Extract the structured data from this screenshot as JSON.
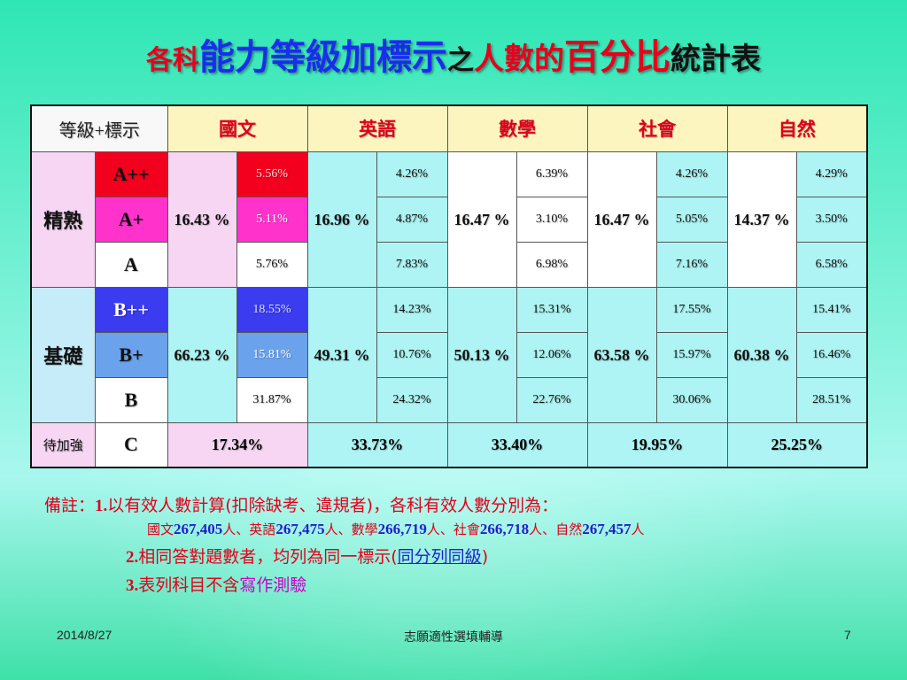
{
  "title": {
    "p1": "各科",
    "p2": "能力等級加標示",
    "p3": "之",
    "p4": "人數的",
    "p5": "百分比",
    "p6": "統計表"
  },
  "table": {
    "corner_label": "等級+標示",
    "subjects": [
      "國文",
      "英語",
      "數學",
      "社會",
      "自然"
    ],
    "groups": {
      "proficient": "精熟",
      "basic": "基礎",
      "needs_work": "待加強"
    },
    "levels": [
      "A++",
      "A+",
      "A",
      "B++",
      "B+",
      "B",
      "C"
    ],
    "subtotals": {
      "proficient": [
        "16.43 %",
        "16.96 %",
        "16.47 %",
        "16.47 %",
        "14.37 %"
      ],
      "basic": [
        "66.23 %",
        "49.31 %",
        "50.13 %",
        "63.58 %",
        "60.38 %"
      ]
    },
    "rows": [
      [
        "5.56%",
        "4.26%",
        "6.39%",
        "4.26%",
        "4.29%"
      ],
      [
        "5.11%",
        "4.87%",
        "3.10%",
        "5.05%",
        "3.50%"
      ],
      [
        "5.76%",
        "7.83%",
        "6.98%",
        "7.16%",
        "6.58%"
      ],
      [
        "18.55%",
        "14.23%",
        "15.31%",
        "17.55%",
        "15.41%"
      ],
      [
        "15.81%",
        "10.76%",
        "12.06%",
        "15.97%",
        "16.46%"
      ],
      [
        "31.87%",
        "24.32%",
        "22.76%",
        "30.06%",
        "28.51%"
      ]
    ],
    "c_row": [
      "17.34%",
      "33.73%",
      "33.40%",
      "19.95%",
      "25.25%"
    ]
  },
  "notes": {
    "n1_prefix": "備註：",
    "n1_num": "1.",
    "n1_text": "以有效人數計算(扣除缺考、違規者)，各科有效人數分別為：",
    "counts": [
      {
        "subject": "國文",
        "count": "267,405",
        "unit": "人"
      },
      {
        "subject": "英語",
        "count": "267,475",
        "unit": "人"
      },
      {
        "subject": "數學",
        "count": "266,719",
        "unit": "人"
      },
      {
        "subject": "社會",
        "count": "266,718",
        "unit": "人"
      },
      {
        "subject": "自然",
        "count": "267,457",
        "unit": "人"
      }
    ],
    "separator": "、",
    "n2_num": "2.",
    "n2_text": "相同答對題數者，均列為同一標示(",
    "n2_highlight": "同分列同級",
    "n2_close": ")",
    "n3_num": "3.",
    "n3_text": "表列科目不含",
    "n3_highlight": "寫作測驗"
  },
  "footer": {
    "date": "2014/8/27",
    "center": "志願適性選填輔導",
    "page": "7"
  }
}
